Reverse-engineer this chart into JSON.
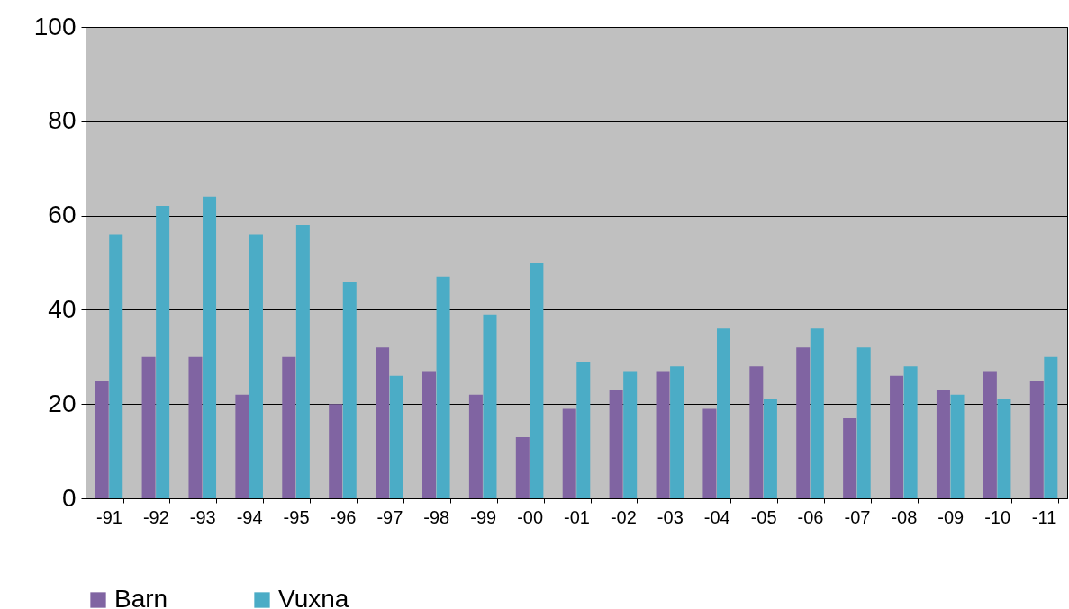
{
  "chart_data": {
    "type": "bar",
    "categories": [
      "-91",
      "-92",
      "-93",
      "-94",
      "-95",
      "-96",
      "-97",
      "-98",
      "-99",
      "-00",
      "-01",
      "-02",
      "-03",
      "-04",
      "-05",
      "-06",
      "-07",
      "-08",
      "-09",
      "-10",
      "-11"
    ],
    "series": [
      {
        "name": "Barn",
        "color": "#8064a2",
        "values": [
          25,
          30,
          30,
          22,
          30,
          20,
          32,
          27,
          22,
          13,
          19,
          23,
          27,
          19,
          28,
          32,
          17,
          26,
          23,
          27,
          25
        ]
      },
      {
        "name": "Vuxna",
        "color": "#4bacc6",
        "values": [
          56,
          62,
          64,
          56,
          58,
          46,
          26,
          47,
          39,
          50,
          29,
          27,
          28,
          36,
          21,
          36,
          32,
          28,
          22,
          21,
          30
        ]
      }
    ],
    "ylim": [
      0,
      100
    ],
    "yticks": [
      0,
      20,
      40,
      60,
      80,
      100
    ],
    "grid": "y",
    "legend": "bottom"
  }
}
